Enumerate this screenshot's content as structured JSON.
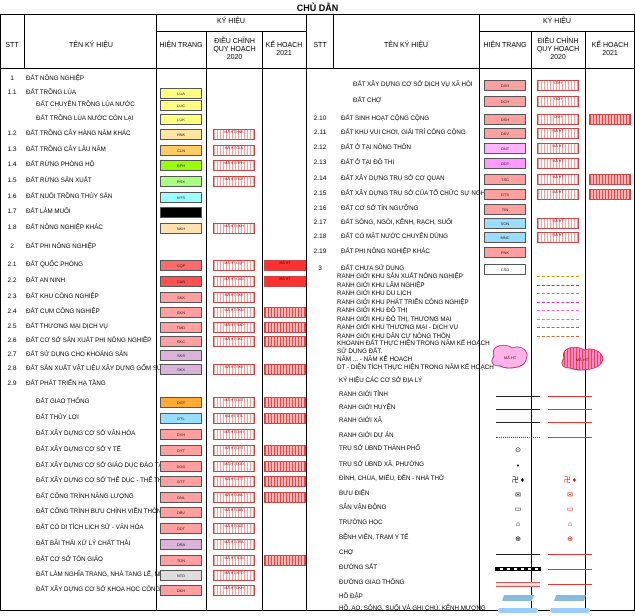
{
  "title": "CHỦ DẪN",
  "headers": {
    "stt": "STT",
    "ten": "TÊN KÝ HIỆU",
    "ky_hieu": "KÝ HIỆU",
    "hien_trang": "HIỆN TRẠNG",
    "dieu_chinh": "ĐIỀU CHỈNH QUY HOẠCH 2020",
    "ke_hoach": "KẾ HOẠCH 2021"
  },
  "left_rows": [
    {
      "stt": "1",
      "name": "ĐẤT NÔNG NGHIỆP",
      "code": "",
      "color": "",
      "plan": ""
    },
    {
      "stt": "1.1",
      "name": "ĐẤT TRỒNG LÚA",
      "code": "LUA",
      "color": "#ffff80",
      "plan": ""
    },
    {
      "stt": "",
      "name": "ĐẤT CHUYÊN TRỒNG LÚA NƯỚC",
      "code": "LUC",
      "color": "#ffff80",
      "plan": ""
    },
    {
      "stt": "",
      "name": "ĐẤT TRỒNG LÚA NƯỚC CÒN LẠI",
      "code": "LUK",
      "color": "#ffff80",
      "plan": ""
    },
    {
      "stt": "1.2",
      "name": "ĐẤT TRỒNG CÂY HÀNG NĂM KHÁC",
      "code": "HNK",
      "color": "#ffe6a0",
      "plan": "MÃ HT"
    },
    {
      "stt": "1.3",
      "name": "ĐẤT TRỒNG CÂY LÂU NĂM",
      "code": "CLN",
      "color": "#ffcc66",
      "plan": "MÃ HT"
    },
    {
      "stt": "1.4",
      "name": "ĐẤT RỪNG PHÒNG HỘ",
      "code": "RPH",
      "color": "#99ff00",
      "plan": "MÃ HT"
    },
    {
      "stt": "1.5",
      "name": "ĐẤT RỪNG SẢN XUẤT",
      "code": "RSX",
      "color": "#a8ff80",
      "plan": "MÃ HT"
    },
    {
      "stt": "1.6",
      "name": "ĐẤT NUÔI TRỒNG THỦY SẢN",
      "code": "NTS",
      "color": "#99ffff",
      "plan": ""
    },
    {
      "stt": "1.7",
      "name": "ĐẤT LÀM MUỐI",
      "code": "",
      "color": "#000000",
      "plan": ""
    },
    {
      "stt": "1.8",
      "name": "ĐẤT NÔNG NGHIỆP KHÁC",
      "code": "NKH",
      "color": "#ffe0b0",
      "plan": "MÃ HT"
    },
    {
      "stt": "2",
      "name": "ĐẤT PHI NÔNG NGHIỆP",
      "code": "",
      "color": "",
      "plan": ""
    },
    {
      "stt": "2.1",
      "name": "ĐẤT QUỐC PHÒNG",
      "code": "CQP",
      "color": "#ff6a6a",
      "plan": "MÃ HT"
    },
    {
      "stt": "2.2",
      "name": "ĐẤT AN NINH",
      "code": "CAN",
      "color": "#ff5050",
      "plan": "MÃ HT"
    },
    {
      "stt": "2.3",
      "name": "ĐẤT KHU CÔNG NGHIỆP",
      "code": "SKK",
      "color": "#ffa0a0",
      "plan": "MÃ HT"
    },
    {
      "stt": "2.4",
      "name": "ĐẤT CỤM CÔNG NGHIỆP",
      "code": "SKN",
      "color": "#ffa0a0",
      "plan": "MÃ HT"
    },
    {
      "stt": "2.5",
      "name": "ĐẤT THƯƠNG MẠI DỊCH VỤ",
      "code": "TMD",
      "color": "#ffa0a0",
      "plan": "MÃ HT"
    },
    {
      "stt": "2.6",
      "name": "ĐẤT CƠ SỞ SẢN XUẤT PHI NÔNG NGHIỆP",
      "code": "SKC",
      "color": "#ffa0a0",
      "plan": "MÃ HT"
    },
    {
      "stt": "2.7",
      "name": "ĐẤT SỬ DỤNG CHO KHOÁNG SẢN",
      "code": "SKS",
      "color": "#d9b3d9",
      "plan": ""
    },
    {
      "stt": "2.8",
      "name": "ĐẤT SẢN XUẤT VẬT LIỆU XÂY DỰNG GỐM SỨ",
      "code": "SKX",
      "color": "#d9b3d9",
      "plan": "MÃ HT"
    },
    {
      "stt": "2.9",
      "name": "ĐẤT PHÁT TRIỂN HẠ TẦNG",
      "code": "",
      "color": "",
      "plan": ""
    },
    {
      "stt": "",
      "name": "ĐẤT GIAO THÔNG",
      "code": "DGT",
      "color": "#ffaa33",
      "plan": "MÃ HT"
    },
    {
      "stt": "",
      "name": "ĐẤT THỦY LỢI",
      "code": "DTL",
      "color": "#99ddff",
      "plan": "MÃ HT"
    },
    {
      "stt": "",
      "name": "ĐẤT XÂY DỰNG CƠ SỞ VĂN HÓA",
      "code": "DVH",
      "color": "#ffa0a0",
      "plan": "MÃ HT"
    },
    {
      "stt": "",
      "name": "ĐẤT XÂY DỰNG CƠ SỞ Y TẾ",
      "code": "DYT",
      "color": "#ffa0a0",
      "plan": "MÃ HT"
    },
    {
      "stt": "",
      "name": "ĐẤT XÂY DỰNG CƠ SỞ GIÁO DỤC ĐÀO TẠO",
      "code": "DGD",
      "color": "#ffa0a0",
      "plan": "MÃ HT"
    },
    {
      "stt": "",
      "name": "ĐẤT XÂY DỰNG CƠ SỞ THỂ DỤC - THỂ THAO",
      "code": "DTT",
      "color": "#ffa0a0",
      "plan": "MÃ HT"
    },
    {
      "stt": "",
      "name": "ĐẤT CÔNG TRÌNH NĂNG LƯỢNG",
      "code": "DNL",
      "color": "#ffa0a0",
      "plan": "MÃ HT"
    },
    {
      "stt": "",
      "name": "ĐẤT CÔNG TRÌNH BƯU CHÍNH VIỄN THÔNG",
      "code": "DBV",
      "color": "#ffa0a0",
      "plan": "MÃ HT"
    },
    {
      "stt": "",
      "name": "ĐẤT CÓ DI TÍCH LỊCH SỬ - VĂN HÓA",
      "code": "DDT",
      "color": "#ffa0a0",
      "plan": "MÃ HT"
    },
    {
      "stt": "",
      "name": "ĐẤT BÃI THẢI XỬ LÝ CHẤT THẢI",
      "code": "DRA",
      "color": "#d9b3d9",
      "plan": "MÃ HT"
    },
    {
      "stt": "",
      "name": "ĐẤT CƠ SỞ TÔN GIÁO",
      "code": "TON",
      "color": "#ffa0a0",
      "plan": "MÃ HT"
    },
    {
      "stt": "",
      "name": "ĐẤT LÀM NGHĨA TRANG, NHÀ TANG LỄ, NHÀ HỎA TÁNG",
      "code": "NTD",
      "color": "#dddddd",
      "plan": "MÃ HT"
    },
    {
      "stt": "",
      "name": "ĐẤT XÂY DỰNG CƠ SỞ KHOA HỌC CÔNG NGHỆ",
      "code": "DKH",
      "color": "#ffa0a0",
      "plan": "MÃ HT"
    }
  ],
  "right_rows": [
    {
      "stt": "",
      "name": "ĐẤT XÂY DỰNG CƠ SỞ DỊCH VỤ XÃ HỘI",
      "code": "DXH",
      "color": "#ffa0a0",
      "plan": "DXH"
    },
    {
      "stt": "",
      "name": "ĐẤT CHỢ",
      "code": "DCH",
      "color": "#ffa0a0",
      "plan": "DCH"
    },
    {
      "stt": "2.10",
      "name": "ĐẤT SINH HOẠT CỘNG CỘNG",
      "code": "DSH",
      "color": "#ffa0a0",
      "plan": "DSH"
    },
    {
      "stt": "2.11",
      "name": "ĐẤT KHU VUI CHƠI, GIẢI TRÍ CÔNG CỘNG",
      "code": "DKV",
      "color": "#ffa0a0",
      "plan": "MÃ HT"
    },
    {
      "stt": "2.12",
      "name": "ĐẤT Ở TẠI NÔNG THÔN",
      "code": "ONT",
      "color": "#ffb3ff",
      "plan": "MÃ HT"
    },
    {
      "stt": "2.13",
      "name": "ĐẤT Ở TẠI ĐÔ THỊ",
      "code": "ODT",
      "color": "#ff99ff",
      "plan": "MÃ HT"
    },
    {
      "stt": "2.14",
      "name": "ĐẤT XÂY DỰNG TRỤ SỞ CƠ QUAN",
      "code": "TSC",
      "color": "#ffa0a0",
      "plan": "MÃ HT"
    },
    {
      "stt": "2.15",
      "name": "ĐẤT XÂY DỰNG TRỤ SỞ CỦA TỔ CHỨC SỰ NGHIỆP",
      "code": "DTS",
      "color": "#ffa0a0",
      "plan": "MÃ HT"
    },
    {
      "stt": "2.16",
      "name": "ĐẤT CƠ SỞ TÍN NGƯỠNG",
      "code": "TIN",
      "color": "#ffa0a0",
      "plan": ""
    },
    {
      "stt": "2.17",
      "name": "ĐẤT SÔNG, NGÒI, KÊNH, RẠCH, SUỐI",
      "code": "SON",
      "color": "#99ddff",
      "plan": "MÃ HT"
    },
    {
      "stt": "2.18",
      "name": "ĐẤT CÓ MẶT NƯỚC CHUYÊN DÙNG",
      "code": "MNC",
      "color": "#99ddff",
      "plan": "MÃ HT"
    },
    {
      "stt": "2.19",
      "name": "ĐẤT PHI NÔNG NGHIỆP KHÁC",
      "code": "PNK",
      "color": "#ffa0a0",
      "plan": ""
    },
    {
      "stt": "3",
      "name": "ĐẤT CHƯA SỬ DỤNG",
      "code": "CSD",
      "color": "#ffffff",
      "plan": ""
    }
  ],
  "boundary_lines": [
    "RANH GIỚI KHU SẢN XUẤT NÔNG NGHIỆP",
    "RANH GIỚI KHU LÂM NGHIỆP",
    "RANH GIỚI KHU DU LỊCH",
    "RANH GIỚI KHU PHÁT TRIỂN CÔNG NGHIỆP",
    "RANH GIỚI KHU ĐÔ THỊ",
    "RANH GIỚI KHU ĐÔ THỊ, THƯƠNG MẠI",
    "RANH GIỚI KHU THƯƠNG MẠI - DỊCH VỤ",
    "RANH GIỚI KHU DÂN CƯ NÔNG THÔN"
  ],
  "khoanh": {
    "line1": "KHOANH ĐẤT THỰC HIỆN TRONG NĂM KẾ HOẠCH",
    "line2": "SỬ DỤNG ĐẤT.",
    "line3": "NĂM ... - NĂM KẾ HOẠCH",
    "line4": "DT - DIỆN TÍCH THỰC HIỆN TRONG NĂM KẾ HOẠCH",
    "blob_text": "MÃ HT"
  },
  "symbols": [
    {
      "name": "KÝ HIỆU CÁC CƠ SỞ ĐỊA LÝ",
      "icon": "none"
    },
    {
      "name": "RANH GIỚI TỈNH",
      "icon": "line"
    },
    {
      "name": "RANH GIỚI HUYỆN",
      "icon": "line"
    },
    {
      "name": "RANH GIỚI XÃ",
      "icon": "line"
    },
    {
      "name": "RANH GIỚI DỰ ÁN",
      "icon": "dotted"
    },
    {
      "name": "TRỤ SỞ UBND THÀNH PHỐ",
      "icon": "⊙"
    },
    {
      "name": "TRỤ SỞ UBND XÃ, PHƯỜNG",
      "icon": "•"
    },
    {
      "name": "ĐÌNH, CHÙA, MIẾU, ĐỀN - NHÀ THỜ",
      "icon": "卍 ♦"
    },
    {
      "name": "BƯU ĐIỆN",
      "icon": "✉"
    },
    {
      "name": "SÂN VẬN ĐỘNG",
      "icon": "▭"
    },
    {
      "name": "TRƯỜNG HỌC",
      "icon": "⌂"
    },
    {
      "name": "BỆNH VIỆN, TRẠM Y TẾ",
      "icon": "⊕"
    },
    {
      "name": "CHỢ",
      "icon": "line"
    },
    {
      "name": "ĐƯỜNG SẮT",
      "icon": "rail"
    },
    {
      "name": "ĐƯỜNG GIAO THÔNG",
      "icon": "road"
    },
    {
      "name": "HỒ ĐẬP",
      "icon": "dam"
    },
    {
      "name": "HỒ, AO, SÔNG, SUỐI VÀ GHI CHÚ, KÊNH MƯƠNG",
      "icon": "water"
    }
  ],
  "sym_labels": {
    "plan_code": "MÃ HT"
  },
  "colors": {
    "red_plan": "#ff3333",
    "hatch": "#e44"
  }
}
